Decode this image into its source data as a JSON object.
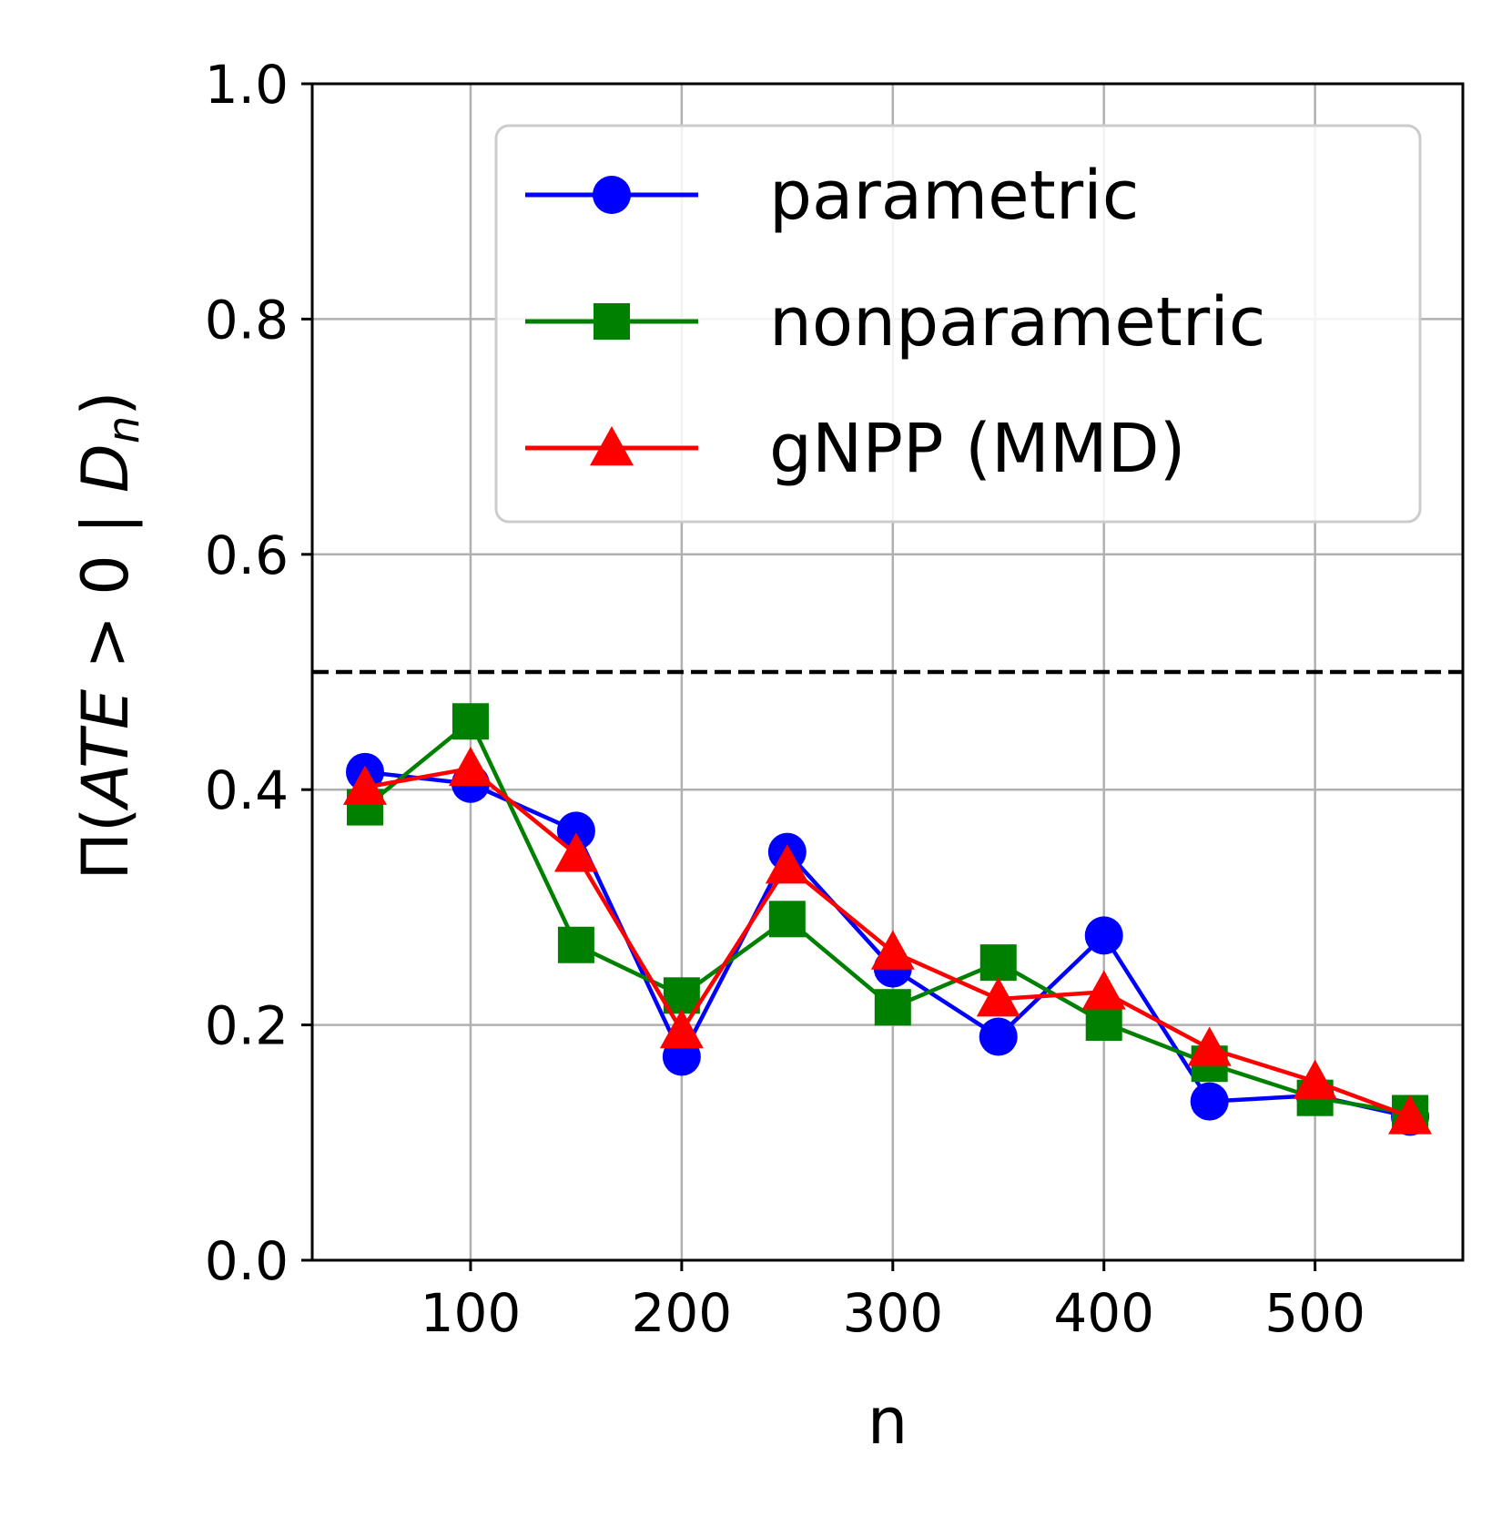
{
  "chart_data": {
    "type": "line",
    "title": "",
    "xlabel": "n",
    "ylabel": "Π(ATE > 0 | D_n)",
    "ylabel_parts": {
      "prefix": "Π(",
      "ate": "ATE",
      "middle": " > 0 | ",
      "d": "D",
      "sub": "n",
      "suffix": ")"
    },
    "xlim": [
      25,
      570
    ],
    "ylim": [
      0.0,
      1.0
    ],
    "xticks": [
      100,
      200,
      300,
      400,
      500
    ],
    "xtick_labels": [
      "100",
      "200",
      "300",
      "400",
      "500"
    ],
    "yticks": [
      0.0,
      0.2,
      0.4,
      0.6,
      0.8,
      1.0
    ],
    "ytick_labels": [
      "0.0",
      "0.2",
      "0.4",
      "0.6",
      "0.8",
      "1.0"
    ],
    "grid": true,
    "reference_line": {
      "y": 0.5,
      "style": "dashed",
      "color": "#000000"
    },
    "legend_position": "top-right",
    "x": [
      50,
      100,
      150,
      200,
      250,
      300,
      350,
      400,
      450,
      500,
      545
    ],
    "series": [
      {
        "name": "parametric",
        "color": "#0000ff",
        "marker": "circle",
        "values": [
          0.415,
          0.405,
          0.365,
          0.173,
          0.347,
          0.248,
          0.19,
          0.276,
          0.135,
          0.14,
          0.122
        ]
      },
      {
        "name": "nonparametric",
        "color": "#008000",
        "marker": "square",
        "values": [
          0.385,
          0.458,
          0.268,
          0.225,
          0.29,
          0.215,
          0.253,
          0.202,
          0.167,
          0.138,
          0.125
        ]
      },
      {
        "name": "gNPP (MMD)",
        "color": "#ff0000",
        "marker": "triangle",
        "values": [
          0.402,
          0.418,
          0.345,
          0.195,
          0.335,
          0.262,
          0.222,
          0.228,
          0.18,
          0.152,
          0.122
        ]
      }
    ]
  }
}
